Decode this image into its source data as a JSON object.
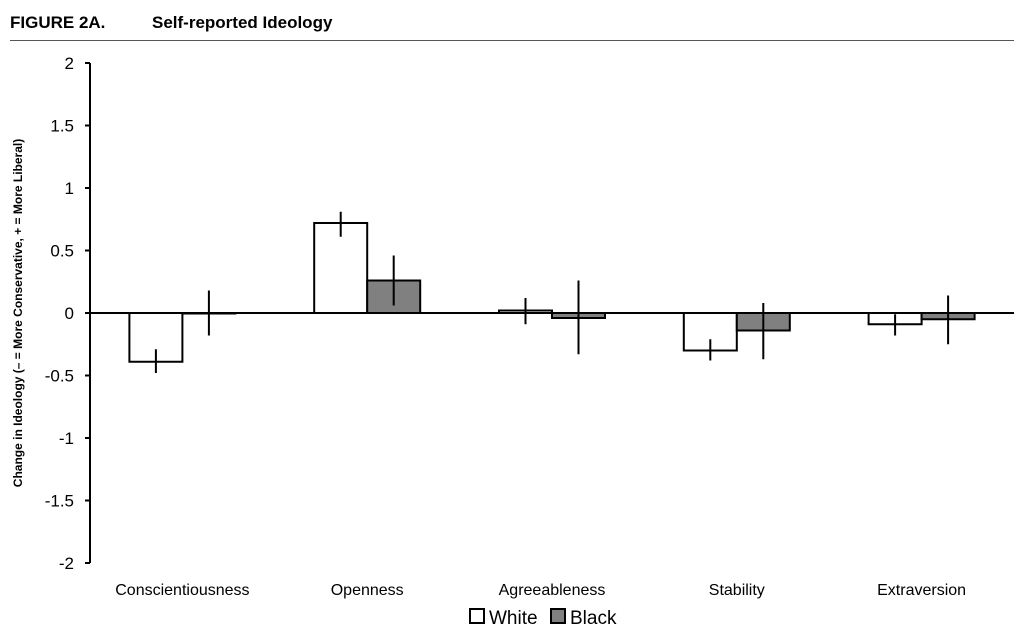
{
  "figure": {
    "label": "FIGURE 2A.",
    "title": "Self-reported Ideology"
  },
  "chart_data": {
    "type": "bar",
    "title": "Self-reported Ideology",
    "xlabel": "",
    "ylabel": "Change in Ideology (– = More Conservative, + = More Liberal)",
    "ylim": [
      -2,
      2
    ],
    "yticks": [
      2,
      1.5,
      1,
      0.5,
      0,
      -0.5,
      -1,
      -1.5,
      -2
    ],
    "ytick_labels": [
      "2",
      "1.5",
      "1",
      "0.5",
      "0",
      "-0.5",
      "-1",
      "-1.5",
      "-2"
    ],
    "categories": [
      "Conscientiousness",
      "Openness",
      "Agreeableness",
      "Stability",
      "Extraversion"
    ],
    "legend_position": "bottom",
    "grid": false,
    "series": [
      {
        "name": "White",
        "color": "#ffffff",
        "values": [
          -0.39,
          0.72,
          0.02,
          -0.3,
          -0.09
        ],
        "error_low": [
          -0.48,
          0.61,
          -0.09,
          -0.38,
          -0.18
        ],
        "error_high": [
          -0.29,
          0.81,
          0.12,
          -0.21,
          -0.01
        ]
      },
      {
        "name": "Black",
        "color": "#808080",
        "values": [
          0.0,
          0.26,
          -0.04,
          -0.14,
          -0.05
        ],
        "error_low": [
          -0.18,
          0.06,
          -0.33,
          -0.37,
          -0.25
        ],
        "error_high": [
          0.18,
          0.46,
          0.26,
          0.08,
          0.14
        ]
      }
    ]
  }
}
